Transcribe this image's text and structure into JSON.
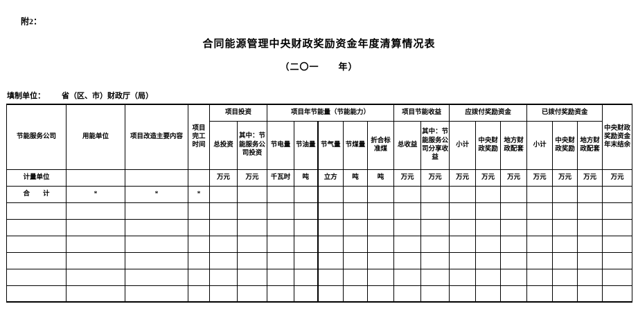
{
  "page": {
    "attachment_label": "附2：",
    "title": "合同能源管理中央财政奖励资金年度清算情况表",
    "subtitle": "（二〇一　　年）",
    "fill_unit_label": "填制单位：",
    "fill_unit_value": "省（区、市）财政厅（局）"
  },
  "table": {
    "left_headers": [
      "节能服务公司",
      "用能单位",
      "项目改造主要内容",
      "项目完工时间"
    ],
    "groups": [
      {
        "label": "项目投资",
        "children": [
          "总投资",
          "其中：节能服务公司投资"
        ]
      },
      {
        "label": "项目年节能量（节能能力）",
        "children": [
          "节电量",
          "节油量",
          "节气量",
          "节煤量",
          "折合标准煤"
        ]
      },
      {
        "label": "项目节能收益",
        "children": [
          "总收益",
          "其中：节能服务公司分享收益"
        ]
      },
      {
        "label": "应拨付奖励资金",
        "children": [
          "小计",
          "中央财政奖励",
          "地方财政配套"
        ]
      },
      {
        "label": "已拨付奖励资金",
        "children": [
          "小计",
          "中央财政奖励",
          "地方财政配套"
        ]
      }
    ],
    "last_header": "中央财政奖励资金年末结余",
    "unit_row_label": "计量单位",
    "units": [
      "万元",
      "万元",
      "千瓦时",
      "吨",
      "立方",
      "吨",
      "吨",
      "万元",
      "万元",
      "万元",
      "万元",
      "万元",
      "万元",
      "万元",
      "万元",
      "万元"
    ],
    "total_row": {
      "label": "合　　计",
      "values": [
        "*",
        "*",
        "*",
        "",
        "",
        "",
        "",
        "",
        "",
        "",
        "",
        "",
        "",
        "",
        "",
        "",
        "",
        "",
        ""
      ]
    },
    "empty_row_count": 6
  }
}
